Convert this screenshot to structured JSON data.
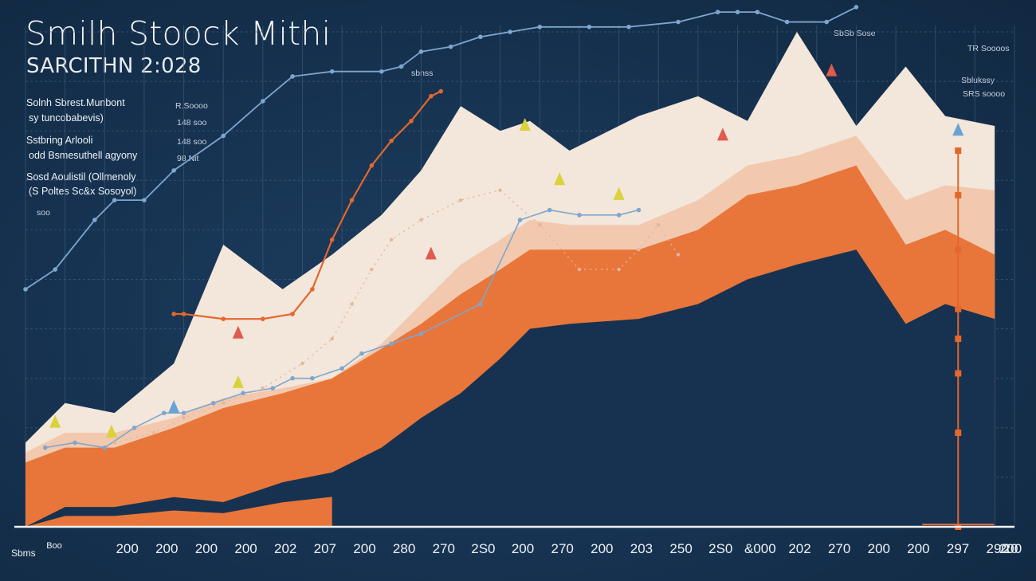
{
  "header": {
    "title": "Smilh Stoock Mithi",
    "subtitle": "SARCITHN 2:028"
  },
  "annotations": {
    "left_notes": [
      "Solnh Sbrest.Munbont",
      "sy tuncobabevis)",
      "Sstbring Arlooli",
      "odd Bsmesuthell agyony",
      "Sosd Aoulistil (Ollmenoly",
      "(S Poltes Sc&x Sosoyol)"
    ],
    "left_values": [
      "R.Soooo",
      "148 soo",
      "148 soo",
      "98 Nit",
      "soo"
    ],
    "top_labels": [
      "sbnss",
      "SbSb Sose",
      "TR Soooos",
      "Sblukssy",
      "SRS soooo"
    ]
  },
  "colors": {
    "background": "#163250",
    "grid": "#3f5f7d",
    "cream": "#f3e6da",
    "orange": "#e8763a",
    "peach": "#f0b08b",
    "line_blue": "#7ea6cf",
    "line_orange": "#e4672c",
    "accent_red": "#e05a4e",
    "accent_yellow": "#d9d23a",
    "accent_blue": "#6aa2d8"
  },
  "chart_data": {
    "type": "area",
    "title": "Smilh Stoock Mithi",
    "subtitle": "SARCITHN 2:028",
    "x_tick_labels": [
      "Sbms",
      "Boo",
      "200",
      "200",
      "200",
      "200",
      "202",
      "207",
      "200",
      "280",
      "270",
      "2S0",
      "200",
      "270",
      "200",
      "203",
      "250",
      "2S0",
      "&000",
      "202",
      "270",
      "200",
      "200",
      "297",
      "290",
      "200",
      "20"
    ],
    "ylim": [
      0,
      100
    ],
    "grid": true,
    "series": [
      {
        "kind": "area",
        "role": "cream-envelope",
        "x": [
          0,
          4,
          9,
          15,
          20,
          26,
          31,
          36,
          40,
          44,
          48,
          51,
          55,
          62,
          68,
          73,
          78,
          84,
          89,
          93,
          98
        ],
        "values": [
          17,
          25,
          23,
          33,
          57,
          48,
          55,
          63,
          72,
          85,
          80,
          82,
          76,
          83,
          87,
          82,
          100,
          81,
          93,
          83,
          81
        ]
      },
      {
        "kind": "area",
        "role": "peach-band",
        "x": [
          0,
          4,
          9,
          15,
          20,
          26,
          31,
          36,
          40,
          44,
          48,
          51,
          55,
          62,
          68,
          73,
          78,
          84,
          89,
          93,
          98
        ],
        "values": [
          15,
          19,
          19,
          22,
          26,
          28,
          30,
          37,
          45,
          53,
          58,
          62,
          61,
          61,
          66,
          73,
          75,
          79,
          66,
          69,
          68
        ]
      },
      {
        "kind": "area",
        "role": "orange-band",
        "x": [
          0,
          4,
          9,
          15,
          20,
          26,
          31,
          36,
          40,
          44,
          48,
          51,
          55,
          62,
          68,
          73,
          78,
          84,
          89,
          93,
          98
        ],
        "values": [
          13,
          16,
          16,
          20,
          24,
          27,
          30,
          36,
          41,
          47,
          52,
          56,
          56,
          56,
          60,
          67,
          69,
          73,
          57,
          60,
          55
        ]
      },
      {
        "kind": "area",
        "role": "orange-floor",
        "x": [
          0,
          4,
          9,
          15,
          20,
          26,
          31,
          36,
          40,
          44,
          48,
          51,
          55,
          62,
          68,
          73,
          78,
          84,
          89,
          93,
          98
        ],
        "values": [
          0,
          4,
          4,
          6,
          5,
          9,
          11,
          16,
          22,
          27,
          34,
          40,
          41,
          42,
          45,
          50,
          53,
          56,
          41,
          45,
          42
        ]
      },
      {
        "kind": "line",
        "role": "blue-upper",
        "x": [
          0,
          3,
          7,
          9,
          12,
          15,
          20,
          24,
          27,
          31,
          36,
          38,
          40,
          43,
          46,
          49,
          52,
          57,
          61,
          66,
          70,
          72,
          74,
          77,
          81,
          84
        ],
        "values": [
          48,
          52,
          62,
          66,
          66,
          72,
          79,
          86,
          91,
          92,
          92,
          93,
          96,
          97,
          99,
          100,
          101,
          101,
          101,
          102,
          104,
          104,
          104,
          102,
          102,
          105
        ]
      },
      {
        "kind": "line",
        "role": "orange-rising",
        "x": [
          15,
          16,
          20,
          24,
          27,
          29,
          31,
          33,
          35,
          37,
          39,
          41,
          42
        ],
        "values": [
          43,
          43,
          42,
          42,
          43,
          48,
          58,
          66,
          73,
          78,
          82,
          87,
          88
        ]
      },
      {
        "kind": "line",
        "role": "blue-lower",
        "x": [
          2,
          5,
          8,
          11,
          14,
          16,
          19,
          22,
          25,
          27,
          29,
          32,
          34,
          37,
          40,
          46,
          50,
          53,
          56,
          60,
          62
        ],
        "values": [
          16,
          17,
          16,
          20,
          23,
          23,
          25,
          27,
          28,
          30,
          30,
          32,
          35,
          37,
          39,
          45,
          62,
          64,
          63,
          63,
          64
        ]
      },
      {
        "kind": "line",
        "role": "dotted-peach",
        "x": [
          9,
          13,
          16,
          20,
          24,
          28,
          31,
          33,
          35,
          37,
          40,
          44,
          48,
          52,
          56,
          60,
          62,
          64,
          66
        ],
        "values": [
          17,
          19,
          22,
          25,
          28,
          33,
          38,
          45,
          52,
          58,
          62,
          66,
          68,
          61,
          52,
          52,
          56,
          61,
          55
        ]
      }
    ],
    "markers": [
      {
        "x": 3,
        "y": 21,
        "shape": "triangle",
        "color": "yellow"
      },
      {
        "x": 8.7,
        "y": 19,
        "shape": "triangle",
        "color": "yellow"
      },
      {
        "x": 15,
        "y": 24,
        "shape": "triangle",
        "color": "blue"
      },
      {
        "x": 21.5,
        "y": 29,
        "shape": "triangle",
        "color": "yellow"
      },
      {
        "x": 21.5,
        "y": 39,
        "shape": "triangle",
        "color": "red"
      },
      {
        "x": 41,
        "y": 55,
        "shape": "triangle",
        "color": "red"
      },
      {
        "x": 50.5,
        "y": 81,
        "shape": "triangle",
        "color": "yellow"
      },
      {
        "x": 54,
        "y": 70,
        "shape": "triangle",
        "color": "yellow"
      },
      {
        "x": 60,
        "y": 67,
        "shape": "triangle",
        "color": "yellow"
      },
      {
        "x": 70.5,
        "y": 79,
        "shape": "triangle",
        "color": "red"
      },
      {
        "x": 81.5,
        "y": 92,
        "shape": "triangle",
        "color": "red"
      },
      {
        "x": 94.3,
        "y": 80,
        "shape": "triangle",
        "color": "blue"
      }
    ],
    "vertical_line": {
      "x": 94.3,
      "from": 0,
      "to": 76,
      "points": [
        76,
        67,
        56,
        44,
        38,
        31,
        19,
        0
      ]
    }
  }
}
